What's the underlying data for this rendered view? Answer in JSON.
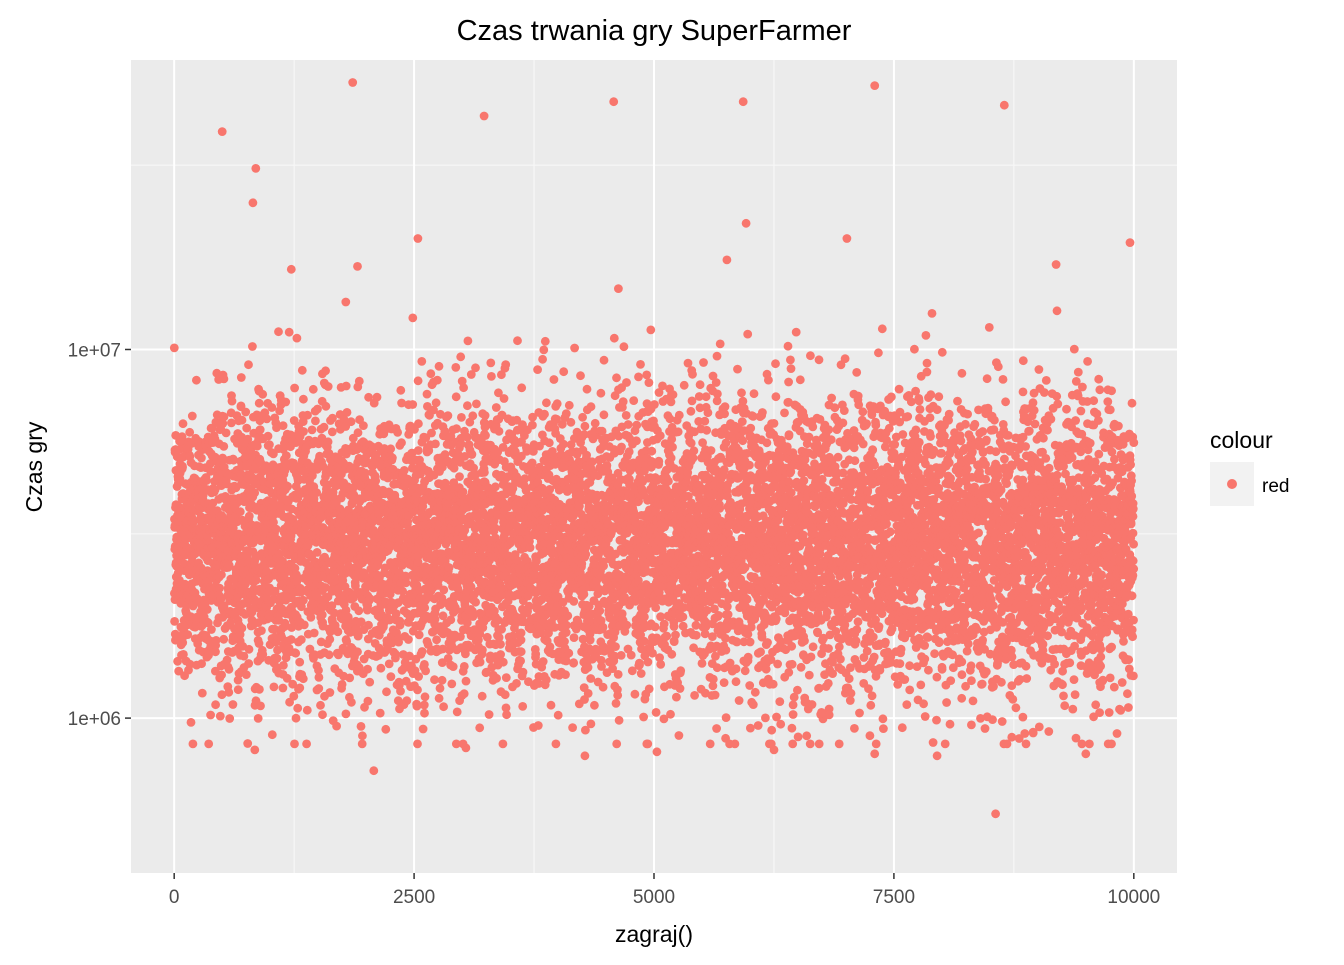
{
  "chart_data": {
    "type": "scatter",
    "title": "Czas trwania gry SuperFarmer",
    "xlabel": "zagraj()",
    "ylabel": "Czas gry",
    "y_scale": "log10",
    "xlim": [
      -450,
      10450
    ],
    "ylim": [
      380000,
      61000000
    ],
    "x_ticks": [
      0,
      2500,
      5000,
      7500,
      10000
    ],
    "x_tick_labels": [
      "0",
      "2500",
      "5000",
      "7500",
      "10000"
    ],
    "y_ticks": [
      1000000,
      10000000
    ],
    "y_tick_labels": [
      "1e+06",
      "1e+07"
    ],
    "grid": true,
    "point_color": "#F8766D",
    "panel_background": "#EBEBEB",
    "legend": {
      "title": "colour",
      "position": "right",
      "entries": [
        {
          "label": "red",
          "color": "#F8766D"
        }
      ]
    },
    "series": [
      {
        "n_points": 10000,
        "distribution": "log-normal",
        "median": 3000000,
        "points": [
          {
            "x": 500,
            "y": 39000000
          },
          {
            "x": 850,
            "y": 31000000
          },
          {
            "x": 820,
            "y": 25000000
          },
          {
            "x": 1860,
            "y": 53000000
          },
          {
            "x": 3230,
            "y": 43000000
          },
          {
            "x": 4580,
            "y": 47000000
          },
          {
            "x": 5930,
            "y": 47000000
          },
          {
            "x": 5960,
            "y": 22000000
          },
          {
            "x": 7300,
            "y": 52000000
          },
          {
            "x": 8650,
            "y": 46000000
          },
          {
            "x": 2540,
            "y": 20000000
          },
          {
            "x": 7010,
            "y": 20000000
          },
          {
            "x": 9190,
            "y": 17000000
          },
          {
            "x": 9960,
            "y": 19500000
          },
          {
            "x": 5760,
            "y": 17500000
          },
          {
            "x": 1220,
            "y": 16500000
          },
          {
            "x": 1910,
            "y": 16800000
          },
          {
            "x": 2080,
            "y": 720000
          },
          {
            "x": 8560,
            "y": 550000
          },
          {
            "x": 4280,
            "y": 790000
          },
          {
            "x": 5030,
            "y": 810000
          },
          {
            "x": 7300,
            "y": 800000
          },
          {
            "x": 7950,
            "y": 790000
          },
          {
            "x": 9500,
            "y": 800000
          },
          {
            "x": 840,
            "y": 820000
          },
          {
            "x": 3040,
            "y": 830000
          },
          {
            "x": 6250,
            "y": 820000
          }
        ]
      }
    ]
  }
}
